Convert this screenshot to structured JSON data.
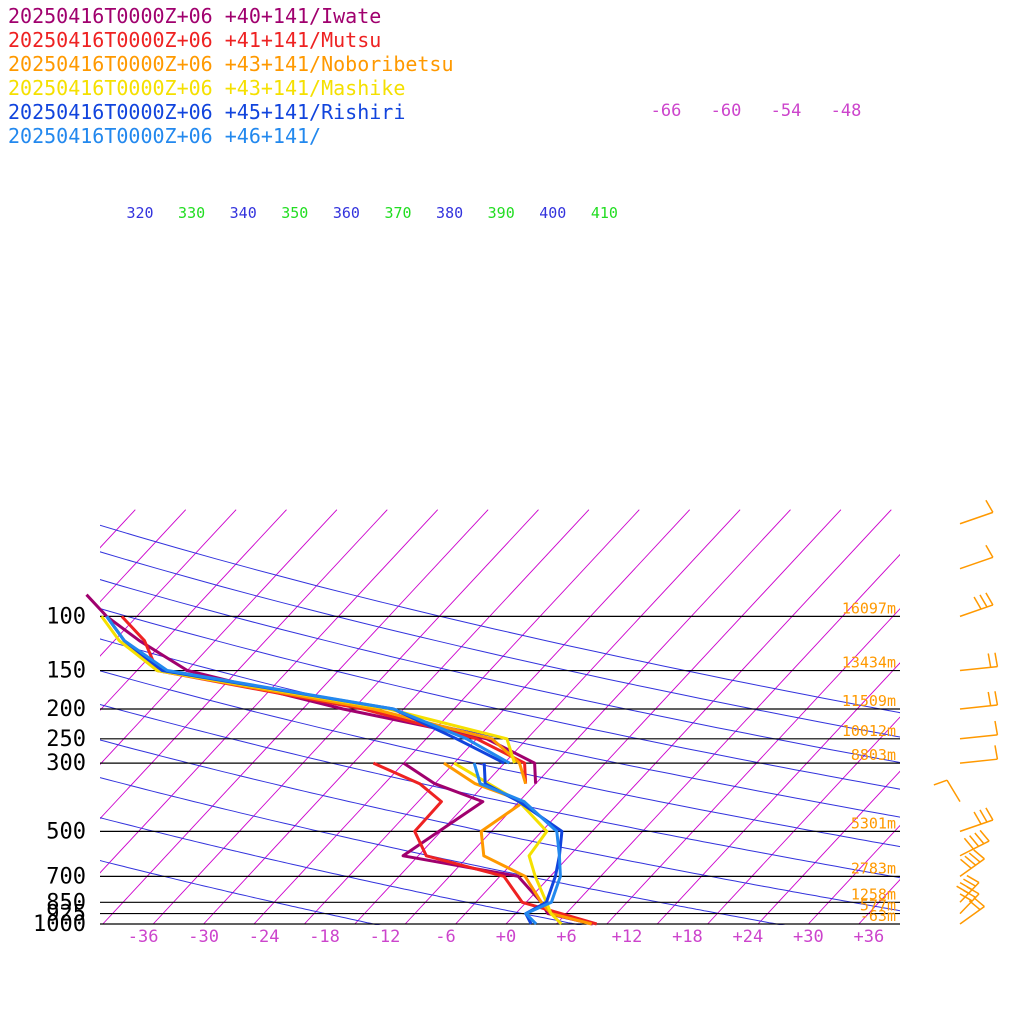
{
  "chart_data": {
    "type": "line",
    "title": "",
    "xlabel": "",
    "ylabel": "",
    "pressure_levels": [
      100,
      150,
      200,
      250,
      300,
      500,
      700,
      850,
      925,
      1000
    ],
    "pressure_labels": [
      "100",
      "150",
      "200",
      "250",
      "300",
      "500",
      "700",
      "850",
      "925",
      "1000"
    ],
    "height_labels": [
      "16097m",
      "13434m",
      "11509m",
      "10012m",
      "8803m",
      "5301m",
      "2783m",
      "1258m",
      "577m",
      "-63m"
    ],
    "temperature_ticks": [
      "-36",
      "-30",
      "-24",
      "-18",
      "-12",
      "-6",
      "+0",
      "+6",
      "+12",
      "+18",
      "+24",
      "+30",
      "+36"
    ],
    "temperature_tick_values": [
      -36,
      -30,
      -24,
      -18,
      -12,
      -6,
      0,
      6,
      12,
      18,
      24,
      30,
      36
    ],
    "upper_temperature_ticks": [
      "-66",
      "-60",
      "-54",
      "-48"
    ],
    "theta_labels": [
      "320",
      "330",
      "340",
      "350",
      "360",
      "370",
      "380",
      "390",
      "400",
      "410"
    ],
    "series": [
      {
        "name": "20250416T0000Z+06 +40+141/Iwate",
        "color": "#a0006e",
        "points": [
          [
            1000,
            8.6
          ],
          [
            925,
            3.2
          ],
          [
            850,
            1.5
          ],
          [
            700,
            -3.2
          ],
          [
            600,
            -16.5
          ],
          [
            500,
            -15.2
          ],
          [
            400,
            -13.6
          ],
          [
            350,
            -20.0
          ],
          [
            300,
            -25.0
          ]
        ],
        "upper": [
          [
            350,
            -10.0
          ],
          [
            300,
            -12.0
          ],
          [
            250,
            -19.0
          ],
          [
            200,
            -36.0
          ],
          [
            150,
            -55.0
          ],
          [
            120,
            -62.5
          ],
          [
            100,
            -68.0
          ],
          [
            85,
            -72.0
          ]
        ]
      },
      {
        "name": "20250416T0000Z+06 +41+141/Mutsu",
        "color": "#ee2222",
        "points": [
          [
            1000,
            9.0
          ],
          [
            925,
            4.5
          ],
          [
            850,
            -0.4
          ],
          [
            700,
            -4.6
          ],
          [
            600,
            -14.2
          ],
          [
            500,
            -17.6
          ],
          [
            400,
            -17.7
          ],
          [
            350,
            -21.5
          ],
          [
            300,
            -28.0
          ]
        ],
        "upper": [
          [
            350,
            -11.0
          ],
          [
            300,
            -13.0
          ],
          [
            250,
            -20.0
          ],
          [
            200,
            -34.0
          ],
          [
            150,
            -58.0
          ],
          [
            120,
            -62.0
          ],
          [
            100,
            -66.5
          ]
        ]
      },
      {
        "name": "20250416T0000Z+06 +43+141/Noboribetsu",
        "color": "#ff9900",
        "points": [
          [
            1000,
            8.5
          ],
          [
            925,
            3.5
          ],
          [
            850,
            1.5
          ],
          [
            700,
            -2.5
          ],
          [
            600,
            -8.5
          ],
          [
            500,
            -11.0
          ],
          [
            400,
            -9.5
          ],
          [
            350,
            -16.0
          ],
          [
            300,
            -21.0
          ]
        ],
        "upper": [
          [
            350,
            -11.0
          ],
          [
            300,
            -13.5
          ],
          [
            250,
            -18.5
          ],
          [
            200,
            -33.0
          ],
          [
            150,
            -58.0
          ],
          [
            120,
            -64.0
          ],
          [
            100,
            -68.0
          ]
        ]
      },
      {
        "name": "20250416T0000Z+06 +43+141/Mashike",
        "color": "#f5e000",
        "points": [
          [
            1000,
            5.5
          ],
          [
            925,
            3.5
          ],
          [
            850,
            2.0
          ],
          [
            700,
            -1.5
          ],
          [
            600,
            -4.0
          ],
          [
            500,
            -4.5
          ],
          [
            400,
            -10.0
          ],
          [
            300,
            -20.0
          ]
        ],
        "upper": [
          [
            300,
            -14.0
          ],
          [
            250,
            -17.0
          ],
          [
            200,
            -31.5
          ],
          [
            150,
            -58.0
          ],
          [
            120,
            -64.5
          ],
          [
            100,
            -68.5
          ]
        ]
      },
      {
        "name": "20250416T0000Z+06 +45+141/Rishiri",
        "color": "#1144dd",
        "points": [
          [
            1000,
            2.5
          ],
          [
            925,
            1.0
          ],
          [
            850,
            2.0
          ],
          [
            700,
            0.5
          ],
          [
            600,
            -1.0
          ],
          [
            500,
            -3.0
          ],
          [
            400,
            -10.0
          ],
          [
            350,
            -15.0
          ],
          [
            300,
            -17.0
          ]
        ],
        "upper": [
          [
            300,
            -15.0
          ],
          [
            250,
            -22.0
          ],
          [
            200,
            -31.0
          ],
          [
            150,
            -57.5
          ],
          [
            120,
            -64.0
          ],
          [
            100,
            -68.0
          ]
        ]
      },
      {
        "name": "20250416T0000Z+06 +46+141/",
        "color": "#2288ee",
        "points": [
          [
            1000,
            3.0
          ],
          [
            925,
            1.0
          ],
          [
            850,
            2.5
          ],
          [
            700,
            1.0
          ],
          [
            600,
            -1.0
          ],
          [
            500,
            -3.5
          ],
          [
            400,
            -9.5
          ],
          [
            350,
            -15.5
          ],
          [
            300,
            -18.0
          ]
        ],
        "upper": [
          [
            300,
            -14.5
          ],
          [
            250,
            -21.0
          ],
          [
            200,
            -31.0
          ],
          [
            150,
            -57.0
          ],
          [
            120,
            -64.0
          ],
          [
            100,
            -68.0
          ]
        ]
      }
    ],
    "wind_barbs": [
      {
        "pressure": 1000,
        "speed_kt": 15,
        "dir": 220
      },
      {
        "pressure": 925,
        "speed_kt": 30,
        "dir": 210
      },
      {
        "pressure": 850,
        "speed_kt": 35,
        "dir": 210
      },
      {
        "pressure": 700,
        "speed_kt": 40,
        "dir": 220
      },
      {
        "pressure": 600,
        "speed_kt": 35,
        "dir": 230
      },
      {
        "pressure": 500,
        "speed_kt": 30,
        "dir": 240
      },
      {
        "pressure": 400,
        "speed_kt": 10,
        "dir": 160
      },
      {
        "pressure": 300,
        "speed_kt": 10,
        "dir": 260
      },
      {
        "pressure": 250,
        "speed_kt": 10,
        "dir": 260
      },
      {
        "pressure": 200,
        "speed_kt": 20,
        "dir": 260
      },
      {
        "pressure": 150,
        "speed_kt": 20,
        "dir": 260
      },
      {
        "pressure": 100,
        "speed_kt": 30,
        "dir": 240
      },
      {
        "pressure": 70,
        "speed_kt": 10,
        "dir": 240
      },
      {
        "pressure": 50,
        "speed_kt": 10,
        "dir": 240
      }
    ],
    "colors": {
      "isotherm": "#cc00cc",
      "dry_adiabat": "#3333dd",
      "moist_adiabat": "#22dd22",
      "isobar": "#000000",
      "height_label": "#ff9900",
      "temp_label": "#cc44cc",
      "wind_barb": "#ff9900"
    }
  }
}
